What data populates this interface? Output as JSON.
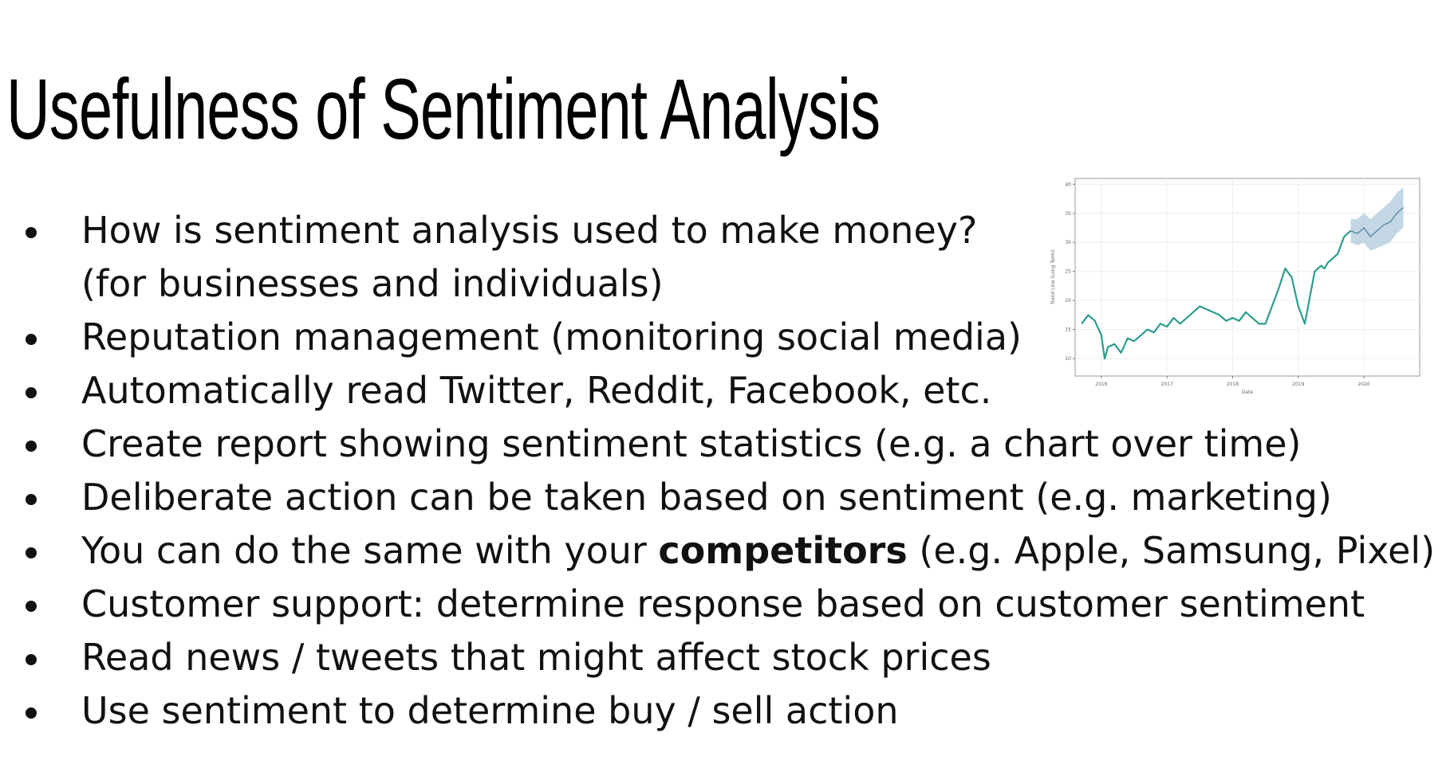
{
  "slide": {
    "title": "Usefulness of Sentiment Analysis",
    "bullets": [
      {
        "text": "How is sentiment analysis used to make money?",
        "continuation": "(for businesses and individuals)"
      },
      {
        "text": "Reputation management (monitoring social media)"
      },
      {
        "text": "Automatically read Twitter, Reddit, Facebook, etc."
      },
      {
        "text": "Create report showing sentiment statistics (e.g. a chart over time)"
      },
      {
        "text": "Deliberate action can be taken based on sentiment (e.g. marketing)"
      },
      {
        "pre": "You can do the same with your ",
        "bold": "competitors",
        "post": " (e.g. Apple, Samsung, Pixel)"
      },
      {
        "text": "Customer support: determine response based on customer sentiment"
      },
      {
        "text": "Read news / tweets that might affect stock prices"
      },
      {
        "text": "Use sentiment to determine buy / sell action"
      }
    ]
  },
  "chart_data": {
    "type": "line",
    "title": "",
    "xlabel": "Date",
    "ylabel": "Trend Line (Long Term)",
    "xlim": [
      2015.6,
      2020.85
    ],
    "ylim": [
      7,
      41
    ],
    "xticks": [
      "2016",
      "2017",
      "2018",
      "2019",
      "2020"
    ],
    "yticks": [
      "10",
      "15",
      "20",
      "25",
      "30",
      "35",
      "40"
    ],
    "grid": true,
    "colors": {
      "line": "#2a9d8f",
      "forecast_line": "#4a7fa0",
      "band": "#aac8d8"
    },
    "series": [
      {
        "x": [
          2015.7,
          2015.8,
          2015.9,
          2016.0,
          2016.05,
          2016.1,
          2016.2,
          2016.3,
          2016.4,
          2016.5,
          2016.6,
          2016.7,
          2016.8,
          2016.9,
          2017.0,
          2017.1,
          2017.2,
          2017.3,
          2017.4,
          2017.5,
          2017.6,
          2017.7,
          2017.8,
          2017.9,
          2018.0,
          2018.1,
          2018.2,
          2018.3,
          2018.4,
          2018.5,
          2018.6,
          2018.7,
          2018.8,
          2018.9,
          2019.0,
          2019.1,
          2019.15,
          2019.25,
          2019.35,
          2019.4,
          2019.45,
          2019.5,
          2019.6,
          2019.7,
          2019.8
        ],
        "y": [
          16,
          17.5,
          16.5,
          14,
          10,
          12,
          12.5,
          11,
          13.5,
          13,
          14,
          15,
          14.5,
          16,
          15.5,
          17,
          16,
          17,
          18,
          19,
          18.5,
          18,
          17.5,
          16.5,
          17,
          16.5,
          18,
          17,
          16,
          16,
          19,
          22,
          25.5,
          24,
          19,
          16,
          19,
          25,
          26,
          25.5,
          26.5,
          27,
          28,
          31,
          32
        ]
      },
      {
        "x": [
          2019.8,
          2019.9,
          2020.0,
          2020.1,
          2020.2,
          2020.3,
          2020.4,
          2020.5,
          2020.6
        ],
        "y": [
          32,
          31.5,
          32.5,
          31,
          32,
          33,
          33.5,
          35,
          36
        ],
        "band_lower": [
          30,
          29.5,
          30,
          28.5,
          29,
          29.5,
          30,
          31.5,
          32.5
        ],
        "band_upper": [
          34,
          34,
          35,
          34,
          35,
          36,
          37,
          38.5,
          39.5
        ]
      }
    ]
  }
}
